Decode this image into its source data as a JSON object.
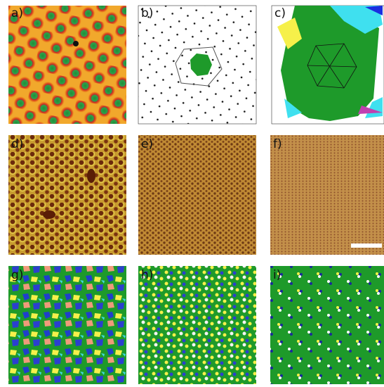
{
  "panels": [
    "a)",
    "b)",
    "c)",
    "d)",
    "e)",
    "f)",
    "g)",
    "h)",
    "i)"
  ]
}
